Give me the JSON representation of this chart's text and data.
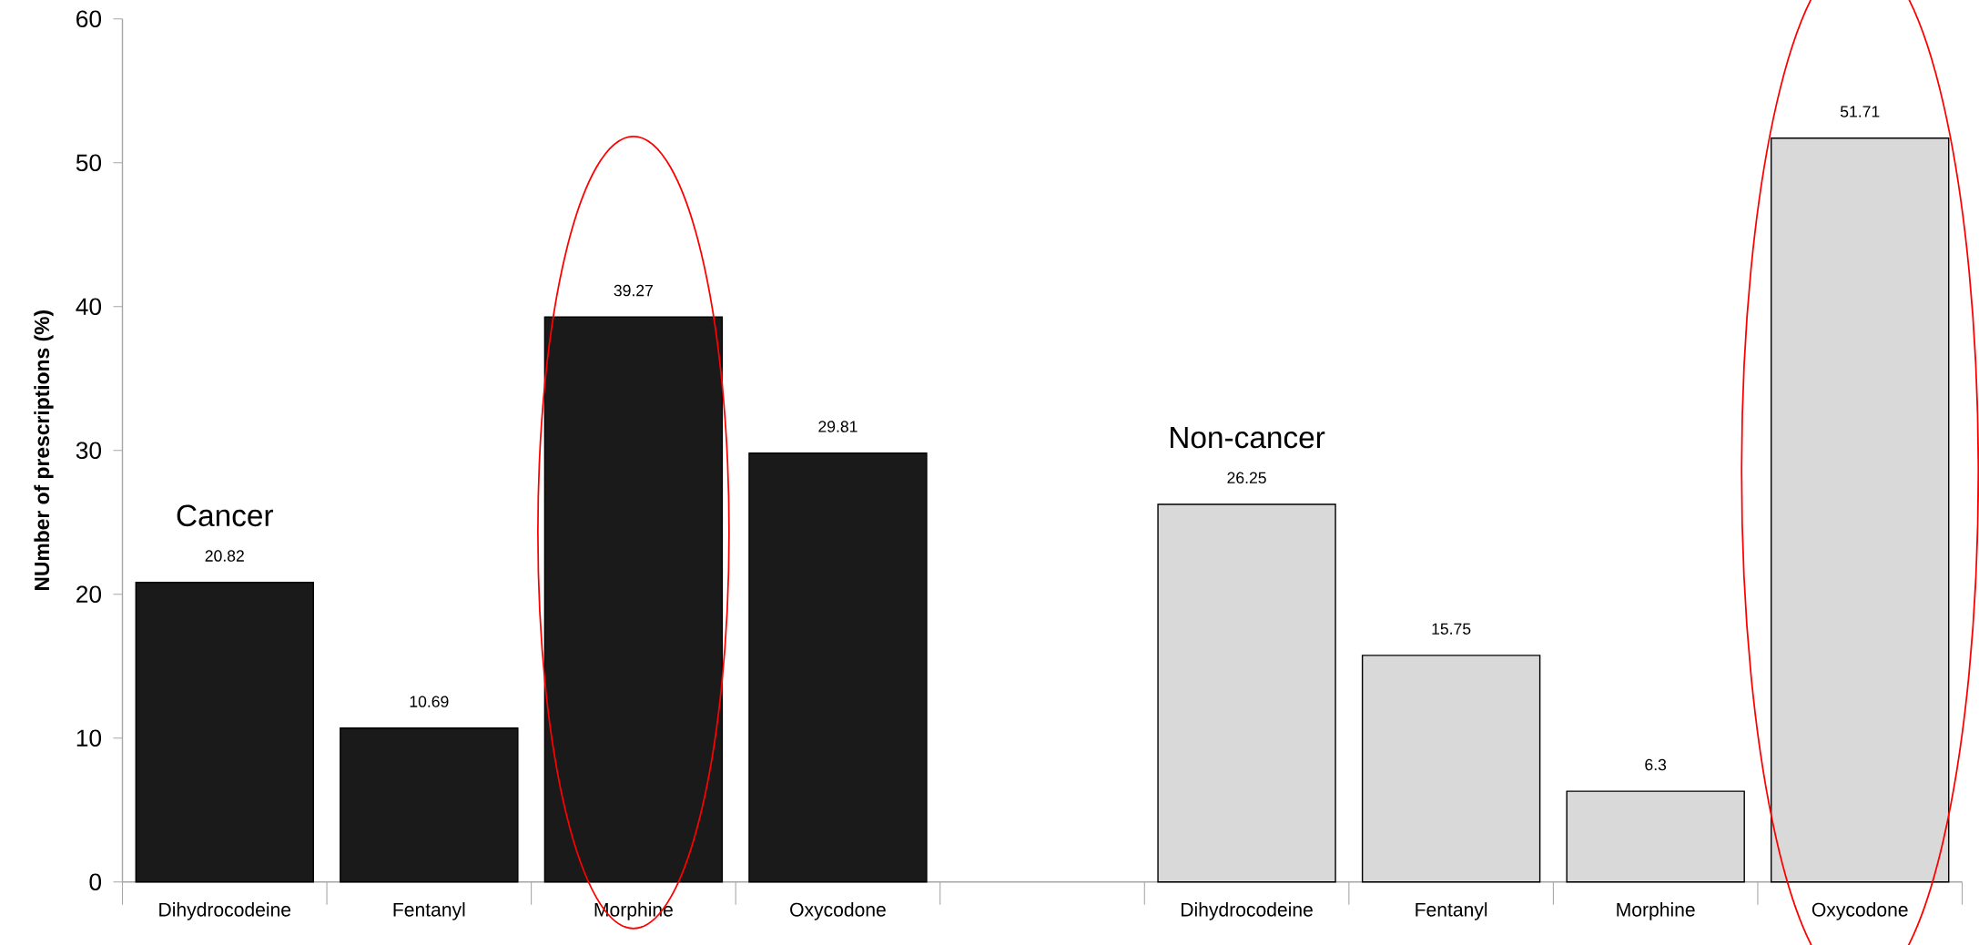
{
  "chart_data": {
    "type": "bar",
    "ylabel": "**NUmber of prescriptions (%)**",
    "categories": [
      "Dihydrocodeine",
      "Fentanyl",
      "Morphine",
      "Oxycodone",
      null,
      "Dihydrocodeine",
      "Fentanyl",
      "Morphine",
      "Oxycodone"
    ],
    "series": [
      {
        "name": "Cancer",
        "color": "#1a1a1a",
        "values": [
          20.82,
          10.69,
          39.27,
          29.81,
          null,
          null,
          null,
          null,
          null
        ]
      },
      {
        "name": "Non-cancer",
        "color": "#d9d9d9",
        "values": [
          null,
          null,
          null,
          null,
          null,
          26.25,
          15.75,
          6.3,
          51.71
        ]
      }
    ],
    "ylim": [
      0,
      60
    ],
    "yticks": [
      0,
      10,
      20,
      30,
      40,
      50,
      60
    ],
    "data_labels": true,
    "grid": false,
    "legend": false
  }
}
